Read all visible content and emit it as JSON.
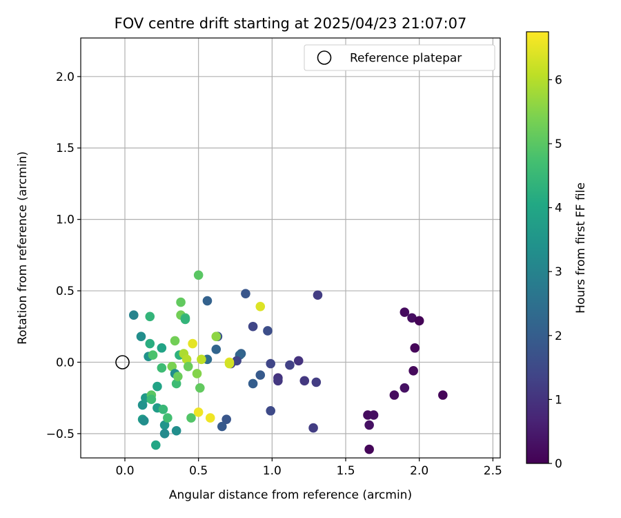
{
  "chart_data": {
    "type": "scatter",
    "title": "FOV centre drift starting at 2025/04/23 21:07:07",
    "xlabel": "Angular distance from reference (arcmin)",
    "ylabel": "Rotation from reference (arcmin)",
    "xlim": [
      -0.3,
      2.55
    ],
    "ylim": [
      -0.67,
      2.27
    ],
    "x_ticks": [
      0.0,
      0.5,
      1.0,
      1.5,
      2.0,
      2.5
    ],
    "x_tick_labels": [
      "0.0",
      "0.5",
      "1.0",
      "1.5",
      "2.0",
      "2.5"
    ],
    "y_ticks": [
      -0.5,
      0.0,
      0.5,
      1.0,
      1.5,
      2.0
    ],
    "y_tick_labels": [
      "−0.5",
      "0.0",
      "0.5",
      "1.0",
      "1.5",
      "2.0"
    ],
    "grid": true,
    "legend": {
      "placement": "top-right",
      "entries": [
        {
          "label": "Reference platepar",
          "marker": "open-circle",
          "color": "#000000"
        }
      ]
    },
    "reference_point": {
      "x": 0.0,
      "y": 0.0
    },
    "colorbar": {
      "label": "Hours from first FF file",
      "colormap": "viridis",
      "range": [
        0,
        6.75
      ],
      "ticks": [
        0,
        1,
        2,
        3,
        4,
        5,
        6
      ],
      "tick_labels": [
        "0",
        "1",
        "2",
        "3",
        "4",
        "5",
        "6"
      ]
    },
    "points": [
      {
        "x": 1.66,
        "y": -0.61,
        "c": 0.1
      },
      {
        "x": 1.65,
        "y": -0.37,
        "c": 0.2
      },
      {
        "x": 1.69,
        "y": -0.37,
        "c": 0.25
      },
      {
        "x": 1.66,
        "y": -0.44,
        "c": 0.3
      },
      {
        "x": 1.83,
        "y": -0.23,
        "c": 0.2
      },
      {
        "x": 1.9,
        "y": -0.18,
        "c": 0.3
      },
      {
        "x": 1.96,
        "y": -0.06,
        "c": 0.15
      },
      {
        "x": 1.97,
        "y": 0.1,
        "c": 0.1
      },
      {
        "x": 1.9,
        "y": 0.35,
        "c": 0.2
      },
      {
        "x": 1.95,
        "y": 0.31,
        "c": 0.25
      },
      {
        "x": 2.0,
        "y": 0.29,
        "c": 0.05
      },
      {
        "x": 2.16,
        "y": -0.23,
        "c": 0.1
      },
      {
        "x": 1.31,
        "y": 0.47,
        "c": 1.2
      },
      {
        "x": 1.28,
        "y": -0.46,
        "c": 1.2
      },
      {
        "x": 1.3,
        "y": -0.14,
        "c": 1.2
      },
      {
        "x": 1.22,
        "y": -0.13,
        "c": 1.1
      },
      {
        "x": 1.18,
        "y": 0.01,
        "c": 1.0
      },
      {
        "x": 1.12,
        "y": -0.02,
        "c": 1.3
      },
      {
        "x": 1.04,
        "y": -0.11,
        "c": 1.0
      },
      {
        "x": 1.04,
        "y": -0.13,
        "c": 1.1
      },
      {
        "x": 0.99,
        "y": -0.01,
        "c": 1.4
      },
      {
        "x": 0.99,
        "y": -0.34,
        "c": 1.5
      },
      {
        "x": 0.97,
        "y": 0.22,
        "c": 1.6
      },
      {
        "x": 0.92,
        "y": -0.09,
        "c": 1.9
      },
      {
        "x": 0.87,
        "y": 0.25,
        "c": 1.4
      },
      {
        "x": 0.87,
        "y": -0.15,
        "c": 2.0
      },
      {
        "x": 0.82,
        "y": 0.48,
        "c": 1.8
      },
      {
        "x": 0.79,
        "y": 0.06,
        "c": 2.1
      },
      {
        "x": 0.78,
        "y": 0.05,
        "c": 2.2
      },
      {
        "x": 0.76,
        "y": 0.01,
        "c": 1.4
      },
      {
        "x": 0.72,
        "y": -0.01,
        "c": 1.3
      },
      {
        "x": 0.69,
        "y": -0.4,
        "c": 1.8
      },
      {
        "x": 0.66,
        "y": -0.45,
        "c": 1.9
      },
      {
        "x": 0.63,
        "y": 0.18,
        "c": 1.7
      },
      {
        "x": 0.62,
        "y": 0.09,
        "c": 2.2
      },
      {
        "x": 0.56,
        "y": 0.43,
        "c": 2.1
      },
      {
        "x": 0.56,
        "y": 0.02,
        "c": 2.4
      },
      {
        "x": 0.06,
        "y": 0.33,
        "c": 3.0
      },
      {
        "x": 0.11,
        "y": 0.18,
        "c": 3.3
      },
      {
        "x": 0.12,
        "y": -0.3,
        "c": 3.4
      },
      {
        "x": 0.12,
        "y": -0.4,
        "c": 3.7
      },
      {
        "x": 0.13,
        "y": -0.41,
        "c": 3.3
      },
      {
        "x": 0.14,
        "y": -0.25,
        "c": 3.6
      },
      {
        "x": 0.16,
        "y": 0.04,
        "c": 3.4
      },
      {
        "x": 0.17,
        "y": 0.32,
        "c": 4.4
      },
      {
        "x": 0.17,
        "y": 0.13,
        "c": 4.2
      },
      {
        "x": 0.18,
        "y": -0.23,
        "c": 5.0
      },
      {
        "x": 0.18,
        "y": -0.26,
        "c": 4.6
      },
      {
        "x": 0.19,
        "y": 0.05,
        "c": 4.8
      },
      {
        "x": 0.21,
        "y": -0.58,
        "c": 4.0
      },
      {
        "x": 0.22,
        "y": -0.17,
        "c": 3.9
      },
      {
        "x": 0.22,
        "y": -0.32,
        "c": 3.7
      },
      {
        "x": 0.25,
        "y": 0.1,
        "c": 3.9
      },
      {
        "x": 0.25,
        "y": -0.04,
        "c": 4.6
      },
      {
        "x": 0.26,
        "y": -0.33,
        "c": 4.5
      },
      {
        "x": 0.27,
        "y": -0.44,
        "c": 3.5
      },
      {
        "x": 0.27,
        "y": -0.5,
        "c": 3.2
      },
      {
        "x": 0.29,
        "y": -0.39,
        "c": 4.7
      },
      {
        "x": 0.32,
        "y": -0.03,
        "c": 5.4
      },
      {
        "x": 0.34,
        "y": 0.15,
        "c": 5.3
      },
      {
        "x": 0.34,
        "y": -0.08,
        "c": 3.3
      },
      {
        "x": 0.35,
        "y": -0.48,
        "c": 3.3
      },
      {
        "x": 0.35,
        "y": -0.15,
        "c": 4.6
      },
      {
        "x": 0.36,
        "y": -0.1,
        "c": 5.2
      },
      {
        "x": 0.37,
        "y": 0.05,
        "c": 4.3
      },
      {
        "x": 0.38,
        "y": 0.42,
        "c": 5.1
      },
      {
        "x": 0.38,
        "y": 0.33,
        "c": 5.3
      },
      {
        "x": 0.4,
        "y": 0.06,
        "c": 5.9
      },
      {
        "x": 0.41,
        "y": 0.31,
        "c": 4.6
      },
      {
        "x": 0.41,
        "y": 0.3,
        "c": 4.4
      },
      {
        "x": 0.42,
        "y": 0.02,
        "c": 6.0
      },
      {
        "x": 0.43,
        "y": -0.03,
        "c": 5.2
      },
      {
        "x": 0.45,
        "y": -0.39,
        "c": 4.9
      },
      {
        "x": 0.46,
        "y": 0.13,
        "c": 6.5
      },
      {
        "x": 0.49,
        "y": -0.08,
        "c": 5.5
      },
      {
        "x": 0.5,
        "y": -0.35,
        "c": 6.6
      },
      {
        "x": 0.5,
        "y": 0.61,
        "c": 5.0
      },
      {
        "x": 0.51,
        "y": -0.18,
        "c": 5.1
      },
      {
        "x": 0.52,
        "y": 0.02,
        "c": 6.1
      },
      {
        "x": 0.58,
        "y": -0.39,
        "c": 6.6
      },
      {
        "x": 0.62,
        "y": 0.18,
        "c": 5.6
      },
      {
        "x": 0.71,
        "y": 0.0,
        "c": 6.5
      },
      {
        "x": 0.71,
        "y": -0.01,
        "c": 6.3
      },
      {
        "x": 0.92,
        "y": 0.39,
        "c": 6.4
      }
    ]
  }
}
